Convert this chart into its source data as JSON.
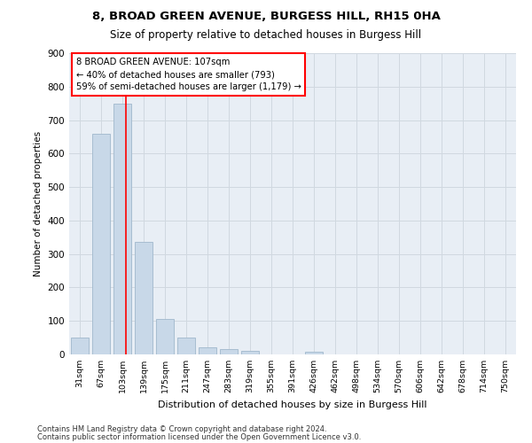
{
  "title_line1": "8, BROAD GREEN AVENUE, BURGESS HILL, RH15 0HA",
  "title_line2": "Size of property relative to detached houses in Burgess Hill",
  "xlabel": "Distribution of detached houses by size in Burgess Hill",
  "ylabel": "Number of detached properties",
  "footnote1": "Contains HM Land Registry data © Crown copyright and database right 2024.",
  "footnote2": "Contains public sector information licensed under the Open Government Licence v3.0.",
  "bar_labels": [
    "31sqm",
    "67sqm",
    "103sqm",
    "139sqm",
    "175sqm",
    "211sqm",
    "247sqm",
    "283sqm",
    "319sqm",
    "355sqm",
    "391sqm",
    "426sqm",
    "462sqm",
    "498sqm",
    "534sqm",
    "570sqm",
    "606sqm",
    "642sqm",
    "678sqm",
    "714sqm",
    "750sqm"
  ],
  "bar_values": [
    50,
    660,
    750,
    335,
    105,
    50,
    22,
    15,
    10,
    0,
    0,
    8,
    0,
    0,
    0,
    0,
    0,
    0,
    0,
    0,
    0
  ],
  "bar_color": "#c8d8e8",
  "bar_edge_color": "#a0b8cc",
  "ylim": [
    0,
    900
  ],
  "yticks": [
    0,
    100,
    200,
    300,
    400,
    500,
    600,
    700,
    800,
    900
  ],
  "red_line_x": 2.18,
  "annotation_text_line1": "8 BROAD GREEN AVENUE: 107sqm",
  "annotation_text_line2": "← 40% of detached houses are smaller (793)",
  "annotation_text_line3": "59% of semi-detached houses are larger (1,179) →",
  "grid_color": "#d0d8e0",
  "plot_background": "#e8eef5"
}
